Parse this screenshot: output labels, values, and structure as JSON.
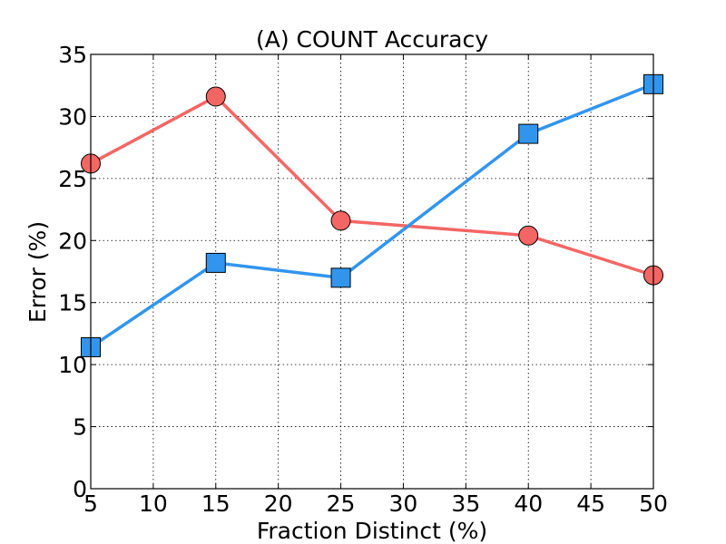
{
  "chart_data": {
    "type": "line",
    "title": "(A) COUNT Accuracy",
    "xlabel": "Fraction Distinct (%)",
    "ylabel": "Error (%)",
    "xlim": [
      5,
      50
    ],
    "ylim": [
      0,
      35
    ],
    "xticks": [
      "5",
      "10",
      "15",
      "20",
      "25",
      "30",
      "35",
      "40",
      "45",
      "50"
    ],
    "yticks": [
      "0",
      "5",
      "10",
      "15",
      "20",
      "25",
      "30",
      "35"
    ],
    "grid": true,
    "x": [
      5,
      15,
      25,
      40,
      50
    ],
    "series": [
      {
        "color": "#f46664",
        "marker": "circle",
        "values": [
          26.2,
          31.6,
          21.6,
          20.4,
          17.2
        ]
      },
      {
        "color": "#3195ee",
        "marker": "square",
        "values": [
          11.4,
          18.2,
          17.0,
          28.6,
          32.6
        ]
      }
    ]
  }
}
